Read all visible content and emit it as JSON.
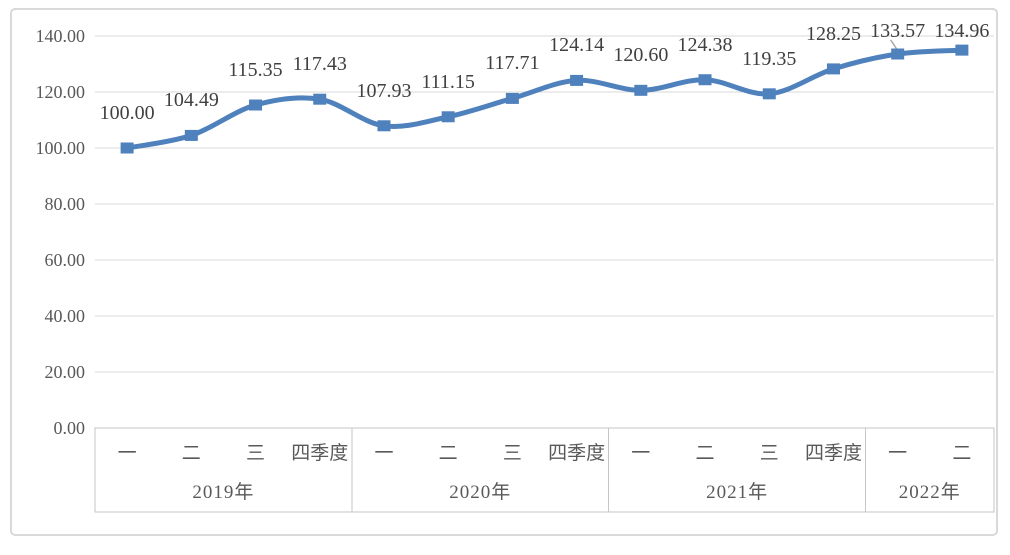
{
  "chart_data": {
    "type": "line",
    "title": "",
    "smoothed": true,
    "grid": true,
    "legend": "none",
    "series": [
      {
        "values": [
          100.0,
          104.49,
          115.35,
          117.43,
          107.93,
          111.15,
          117.71,
          124.14,
          120.6,
          124.38,
          119.35,
          128.25,
          133.57,
          134.96
        ],
        "data_labels": [
          "100.00",
          "104.49",
          "115.35",
          "117.43",
          "107.93",
          "111.15",
          "117.71",
          "124.14",
          "120.60",
          "124.38",
          "119.35",
          "128.25",
          "133.57",
          "134.96"
        ]
      }
    ],
    "categories": [
      "一",
      "二",
      "三",
      "四季度",
      "一",
      "二",
      "三",
      "四季度",
      "一",
      "二",
      "三",
      "四季度",
      "一",
      "二"
    ],
    "category_groups": [
      {
        "label": "2019年",
        "count": 4
      },
      {
        "label": "2020年",
        "count": 4
      },
      {
        "label": "2021年",
        "count": 4
      },
      {
        "label": "2022年",
        "count": 2
      }
    ],
    "y_axis": {
      "min": 0,
      "max": 140,
      "step": 20,
      "tick_labels": [
        "0.00",
        "20.00",
        "40.00",
        "60.00",
        "80.00",
        "100.00",
        "120.00",
        "140.00"
      ]
    },
    "label_leader_line_index": 12,
    "colors": {
      "line": "#4F81BD",
      "marker": "#4F81BD",
      "gridline": "#D9D9D9",
      "frame_border": "#D9D9D9",
      "axis_box_border": "#C6C6C6",
      "axis_text": "#595959",
      "data_label_text": "#404040",
      "leader_line": "#A6A6A6",
      "background": "#FFFFFF"
    }
  }
}
